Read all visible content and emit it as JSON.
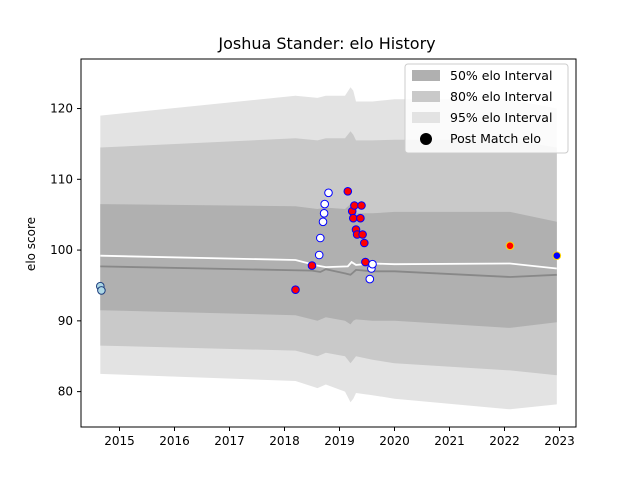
{
  "chart_data": {
    "type": "scatter",
    "title": "Joshua Stander: elo History",
    "xlabel": "",
    "ylabel": "elo score",
    "xlim": [
      2014.3,
      2023.3
    ],
    "ylim": [
      75,
      127
    ],
    "x_ticks": [
      2015,
      2016,
      2017,
      2018,
      2019,
      2020,
      2021,
      2022,
      2023
    ],
    "y_ticks": [
      80,
      90,
      100,
      110,
      120
    ],
    "legend": {
      "position": "top-right",
      "entries": [
        "50% elo Interval",
        "80% elo Interval",
        "95% elo Interval",
        "Post Match elo"
      ]
    },
    "colors": {
      "band95": "#e3e3e3",
      "band80": "#c9c9c9",
      "band50": "#b0b0b0",
      "median_line": "#888888",
      "mean_line": "#ffffff",
      "point_edge_white": "#ffffff",
      "point_edge_blue": "#0000ff",
      "point_edge_yellow": "#ffd700"
    },
    "bands": {
      "x": [
        2014.65,
        2018.2,
        2018.6,
        2018.75,
        2019.1,
        2019.2,
        2019.25,
        2019.3,
        2019.6,
        2020.0,
        2022.1,
        2022.95
      ],
      "p95_upper": [
        119.0,
        121.8,
        121.5,
        121.8,
        121.8,
        123.0,
        122.5,
        121.0,
        121.0,
        121.3,
        121.3,
        120.0
      ],
      "p80_upper": [
        114.5,
        115.8,
        115.5,
        115.8,
        115.8,
        116.8,
        116.3,
        115.5,
        115.5,
        115.6,
        115.6,
        114.5
      ],
      "p50_upper": [
        106.5,
        106.2,
        105.8,
        106.0,
        105.8,
        106.5,
        106.0,
        105.2,
        105.2,
        105.4,
        105.4,
        104.0
      ],
      "p50_lower": [
        91.5,
        90.8,
        90.0,
        90.5,
        90.0,
        89.5,
        90.0,
        90.2,
        90.0,
        90.0,
        89.0,
        89.8
      ],
      "p80_lower": [
        86.5,
        85.8,
        85.0,
        85.5,
        85.0,
        84.0,
        84.5,
        85.0,
        84.5,
        84.0,
        83.0,
        82.3
      ],
      "p95_lower": [
        82.5,
        81.5,
        80.5,
        81.0,
        80.0,
        78.5,
        79.0,
        79.8,
        79.5,
        79.0,
        77.5,
        78.2
      ]
    },
    "median_line": {
      "x": [
        2014.65,
        2018.5,
        2018.65,
        2018.75,
        2019.1,
        2019.2,
        2019.3,
        2019.6,
        2020.0,
        2022.1,
        2022.95
      ],
      "y": [
        97.7,
        97.1,
        96.9,
        97.3,
        96.7,
        96.5,
        97.2,
        97.0,
        97.0,
        96.2,
        96.5
      ]
    },
    "mean_line": {
      "x": [
        2014.65,
        2018.2,
        2018.6,
        2018.75,
        2019.15,
        2019.22,
        2019.3,
        2019.6,
        2020.0,
        2022.1,
        2022.95
      ],
      "y": [
        99.2,
        98.6,
        97.8,
        97.6,
        97.7,
        98.3,
        97.9,
        98.1,
        98.0,
        98.1,
        97.4
      ]
    },
    "points": [
      {
        "x": 2014.65,
        "y": 94.9,
        "fill": "#add8e6",
        "edge": "#1f3f7f"
      },
      {
        "x": 2014.67,
        "y": 94.3,
        "fill": "#add8e6",
        "edge": "#1f3f7f"
      },
      {
        "x": 2018.2,
        "y": 94.4,
        "fill": "#ff0000",
        "edge": "#0000ff"
      },
      {
        "x": 2018.5,
        "y": 97.8,
        "fill": "#ff0000",
        "edge": "#0000ff"
      },
      {
        "x": 2018.63,
        "y": 99.3,
        "fill": "#ffffff",
        "edge": "#0000ff"
      },
      {
        "x": 2018.65,
        "y": 101.7,
        "fill": "#ffffff",
        "edge": "#0000ff"
      },
      {
        "x": 2018.7,
        "y": 104.0,
        "fill": "#ffffff",
        "edge": "#0000ff"
      },
      {
        "x": 2018.72,
        "y": 105.2,
        "fill": "#ffffff",
        "edge": "#0000ff"
      },
      {
        "x": 2018.73,
        "y": 106.5,
        "fill": "#ffffff",
        "edge": "#0000ff"
      },
      {
        "x": 2018.8,
        "y": 108.1,
        "fill": "#ffffff",
        "edge": "#0000ff"
      },
      {
        "x": 2019.15,
        "y": 108.3,
        "fill": "#ff0000",
        "edge": "#0000ff"
      },
      {
        "x": 2019.23,
        "y": 105.5,
        "fill": "#ff0000",
        "edge": "#0000ff"
      },
      {
        "x": 2019.25,
        "y": 104.5,
        "fill": "#ff0000",
        "edge": "#0000ff"
      },
      {
        "x": 2019.27,
        "y": 106.3,
        "fill": "#ff0000",
        "edge": "#0000ff"
      },
      {
        "x": 2019.3,
        "y": 102.9,
        "fill": "#ff0000",
        "edge": "#0000ff"
      },
      {
        "x": 2019.32,
        "y": 102.2,
        "fill": "#ff0000",
        "edge": "#0000ff"
      },
      {
        "x": 2019.38,
        "y": 104.5,
        "fill": "#ff0000",
        "edge": "#0000ff"
      },
      {
        "x": 2019.4,
        "y": 106.3,
        "fill": "#ff0000",
        "edge": "#0000ff"
      },
      {
        "x": 2019.42,
        "y": 102.2,
        "fill": "#ff0000",
        "edge": "#0000ff"
      },
      {
        "x": 2019.45,
        "y": 101.0,
        "fill": "#ff0000",
        "edge": "#0000ff"
      },
      {
        "x": 2019.47,
        "y": 98.3,
        "fill": "#ff0000",
        "edge": "#0000ff"
      },
      {
        "x": 2019.55,
        "y": 95.9,
        "fill": "#ffffff",
        "edge": "#0000ff"
      },
      {
        "x": 2019.58,
        "y": 97.4,
        "fill": "#ffffff",
        "edge": "#0000ff"
      },
      {
        "x": 2019.6,
        "y": 98.0,
        "fill": "#ffffff",
        "edge": "#0000ff"
      },
      {
        "x": 2022.1,
        "y": 100.6,
        "fill": "#ff0000",
        "edge": "#ffd700"
      },
      {
        "x": 2022.95,
        "y": 99.2,
        "fill": "#0000ff",
        "edge": "#ffd700"
      }
    ]
  }
}
